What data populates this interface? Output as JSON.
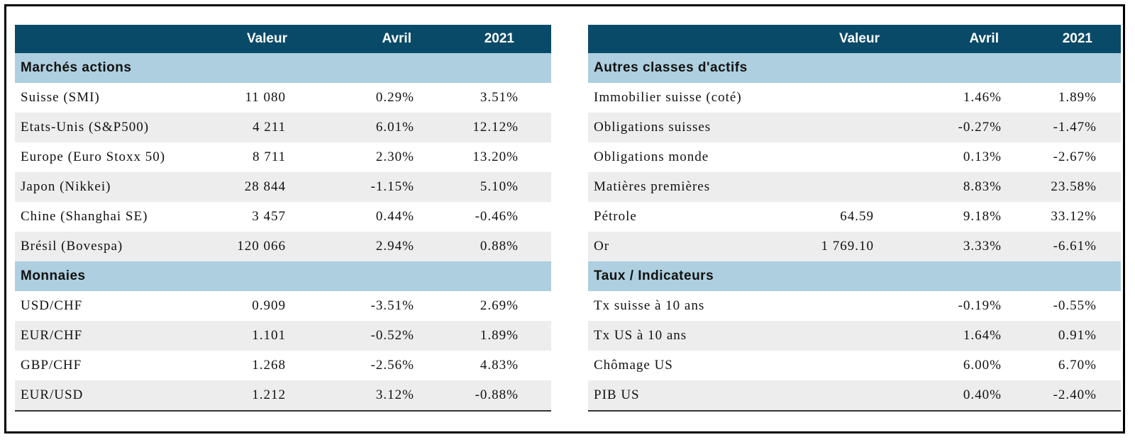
{
  "left": {
    "headers": [
      "",
      "Valeur",
      "Avril",
      "2021"
    ],
    "sections": [
      {
        "title": "Marchés actions",
        "rows": [
          {
            "label": "Suisse (SMI)",
            "valeur": "11 080",
            "avril": "0.29%",
            "y2021": "3.51%"
          },
          {
            "label": "Etats-Unis (S&P500)",
            "valeur": "4 211",
            "avril": "6.01%",
            "y2021": "12.12%"
          },
          {
            "label": "Europe (Euro Stoxx 50)",
            "valeur": "8 711",
            "avril": "2.30%",
            "y2021": "13.20%"
          },
          {
            "label": "Japon (Nikkei)",
            "valeur": "28 844",
            "avril": "-1.15%",
            "y2021": "5.10%"
          },
          {
            "label": "Chine (Shanghai SE)",
            "valeur": "3 457",
            "avril": "0.44%",
            "y2021": "-0.46%"
          },
          {
            "label": "Brésil (Bovespa)",
            "valeur": "120 066",
            "avril": "2.94%",
            "y2021": "0.88%"
          }
        ]
      },
      {
        "title": "Monnaies",
        "rows": [
          {
            "label": "USD/CHF",
            "valeur": "0.909",
            "avril": "-3.51%",
            "y2021": "2.69%"
          },
          {
            "label": "EUR/CHF",
            "valeur": "1.101",
            "avril": "-0.52%",
            "y2021": "1.89%"
          },
          {
            "label": "GBP/CHF",
            "valeur": "1.268",
            "avril": "-2.56%",
            "y2021": "4.83%"
          },
          {
            "label": "EUR/USD",
            "valeur": "1.212",
            "avril": "3.12%",
            "y2021": "-0.88%"
          }
        ]
      }
    ]
  },
  "right": {
    "headers": [
      "",
      "Valeur",
      "Avril",
      "2021"
    ],
    "sections": [
      {
        "title": "Autres classes d'actifs",
        "rows": [
          {
            "label": "Immobilier suisse (coté)",
            "valeur": "",
            "avril": "1.46%",
            "y2021": "1.89%"
          },
          {
            "label": "Obligations suisses",
            "valeur": "",
            "avril": "-0.27%",
            "y2021": "-1.47%"
          },
          {
            "label": "Obligations monde",
            "valeur": "",
            "avril": "0.13%",
            "y2021": "-2.67%"
          },
          {
            "label": "Matières premières",
            "valeur": "",
            "avril": "8.83%",
            "y2021": "23.58%"
          },
          {
            "label": "Pétrole",
            "valeur": "64.59",
            "avril": "9.18%",
            "y2021": "33.12%"
          },
          {
            "label": "Or",
            "valeur": "1 769.10",
            "avril": "3.33%",
            "y2021": "-6.61%"
          }
        ]
      },
      {
        "title": "Taux / Indicateurs",
        "rows": [
          {
            "label": "Tx suisse à 10 ans",
            "valeur": "",
            "avril": "-0.19%",
            "y2021": "-0.55%"
          },
          {
            "label": "Tx US à 10 ans",
            "valeur": "",
            "avril": "1.64%",
            "y2021": "0.91%"
          },
          {
            "label": "Chômage US",
            "valeur": "",
            "avril": "6.00%",
            "y2021": "6.70%"
          },
          {
            "label": "PIB US",
            "valeur": "",
            "avril": "0.40%",
            "y2021": "-2.40%"
          }
        ]
      }
    ]
  },
  "colors": {
    "header_bg": "#0a4a69",
    "section_bg": "#aecfdf",
    "alt_row_bg": "#ededed"
  }
}
